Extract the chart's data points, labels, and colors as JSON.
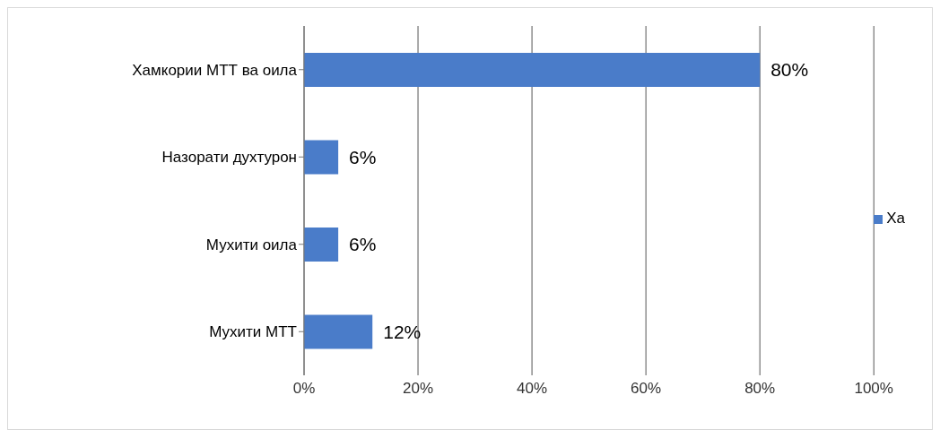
{
  "chart_data": {
    "type": "bar",
    "orientation": "horizontal",
    "categories": [
      "Хамкории МТТ ва оила",
      "Назорати духтурон",
      "Мухити оила",
      "Мухити МТТ"
    ],
    "series": [
      {
        "name": "Ха",
        "color": "#4a7cc9",
        "values": [
          80,
          6,
          6,
          12
        ],
        "value_labels": [
          "80%",
          "6%",
          "6%",
          "12%"
        ]
      }
    ],
    "xlim": [
      0,
      100
    ],
    "xticks": [
      {
        "value": 0,
        "label": "0%"
      },
      {
        "value": 20,
        "label": "20%"
      },
      {
        "value": 40,
        "label": "40%"
      },
      {
        "value": 60,
        "label": "60%"
      },
      {
        "value": 80,
        "label": "80%"
      },
      {
        "value": 100,
        "label": "100%"
      }
    ],
    "grid": "x",
    "legend": "right"
  }
}
